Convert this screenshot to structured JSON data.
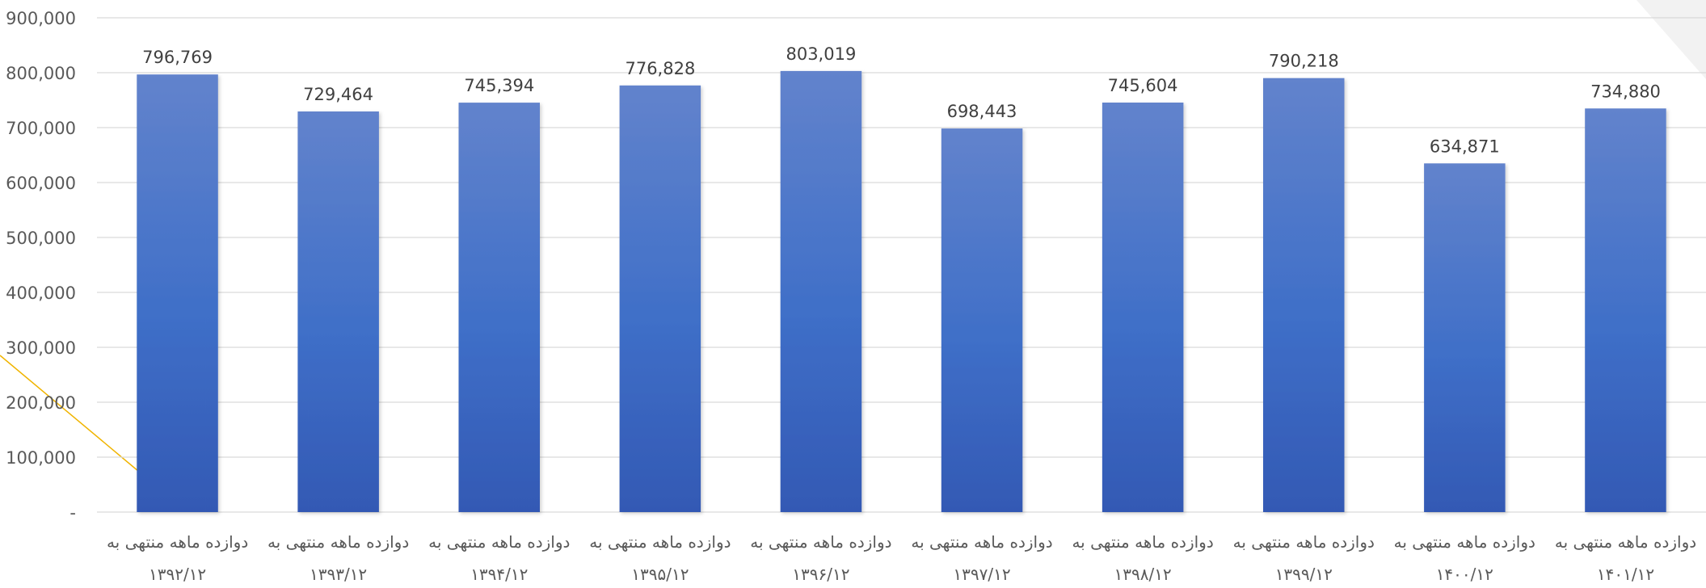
{
  "chart_data": {
    "type": "bar",
    "categories": [
      [
        "دوازده ماهه منتهی به",
        "۱۳۹۲/۱۲"
      ],
      [
        "دوازده ماهه منتهی به",
        "۱۳۹۳/۱۲"
      ],
      [
        "دوازده ماهه منتهی به",
        "۱۳۹۴/۱۲"
      ],
      [
        "دوازده ماهه منتهی به",
        "۱۳۹۵/۱۲"
      ],
      [
        "دوازده ماهه منتهی به",
        "۱۳۹۶/۱۲"
      ],
      [
        "دوازده ماهه منتهی به",
        "۱۳۹۷/۱۲"
      ],
      [
        "دوازده ماهه منتهی به",
        "۱۳۹۸/۱۲"
      ],
      [
        "دوازده ماهه منتهی به",
        "۱۳۹۹/۱۲"
      ],
      [
        "دوازده ماهه منتهی به",
        "۱۴۰۰/۱۲"
      ],
      [
        "دوازده ماهه منتهی به",
        "۱۴۰۱/۱۲"
      ]
    ],
    "values": [
      796769,
      729464,
      745394,
      776828,
      803019,
      698443,
      745604,
      790218,
      634871,
      734880
    ],
    "data_labels": [
      "796,769",
      "729,464",
      "745,394",
      "776,828",
      "803,019",
      "698,443",
      "745,604",
      "790,218",
      "634,871",
      "734,880"
    ],
    "y_ticks": [
      "-",
      "100,000",
      "200,000",
      "300,000",
      "400,000",
      "500,000",
      "600,000",
      "700,000",
      "800,000",
      "900,000"
    ],
    "ylim": [
      0,
      900000
    ],
    "grid": true,
    "legend": "none",
    "colors": {
      "bar_top": "#6283cc",
      "bar_mid": "#3f6fc8",
      "bar_bottom": "#3359b4",
      "gridline": "#d9d9d9",
      "axis_text": "#595959",
      "label_text": "#404040",
      "decor_line": "#f0b400",
      "decor_corner": "#f2f2f2"
    }
  }
}
